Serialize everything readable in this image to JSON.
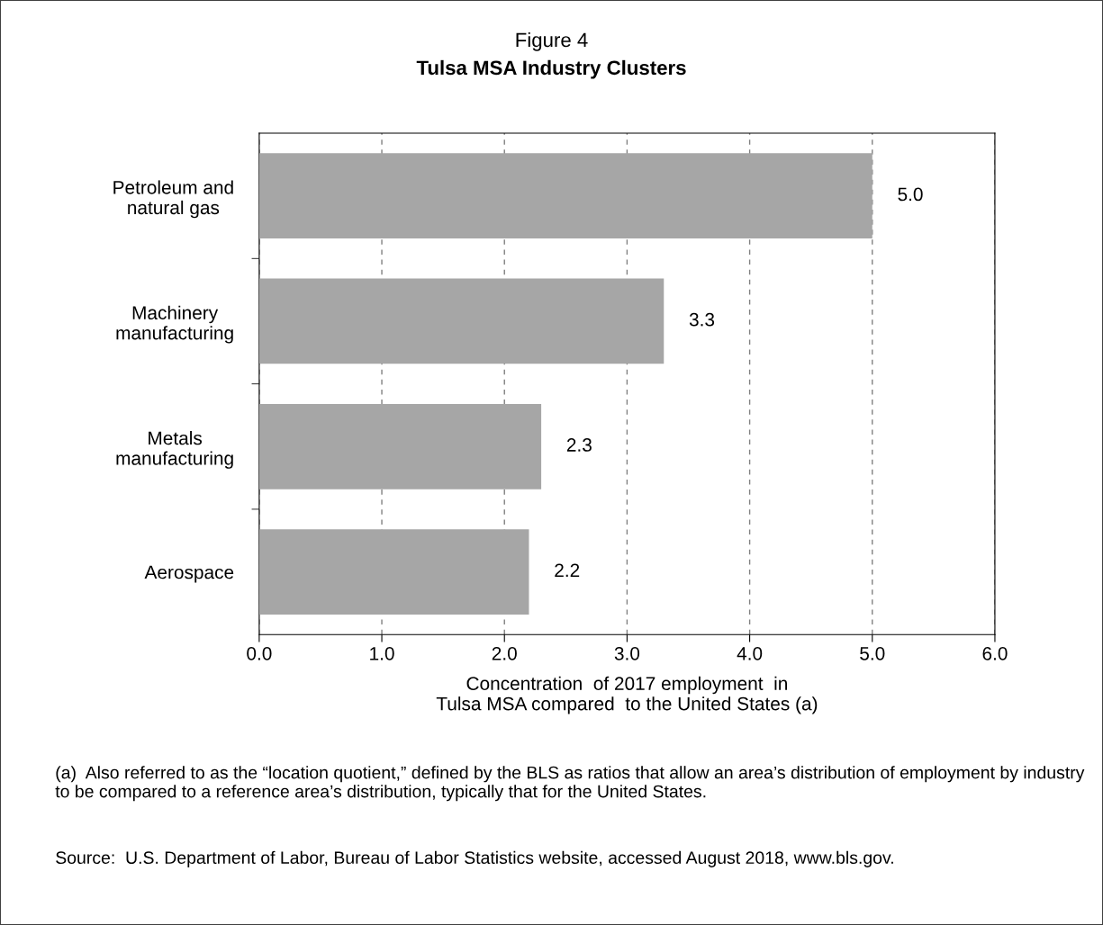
{
  "chart_data": {
    "type": "bar",
    "orientation": "horizontal",
    "title": "Figure 4",
    "subtitle": "Tulsa MSA Industry Clusters",
    "categories": [
      "Petroleum and\nnatural gas",
      "Machinery\nmanufacturing",
      "Metals\nmanufacturing",
      "Aerospace"
    ],
    "values": [
      5.0,
      3.3,
      2.3,
      2.2
    ],
    "color": "#a6a6a6",
    "xlim": [
      0,
      6
    ],
    "xticks": [
      {
        "value": 0,
        "label": "0.0"
      },
      {
        "value": 1,
        "label": "1.0"
      },
      {
        "value": 2,
        "label": "2.0"
      },
      {
        "value": 3,
        "label": "3.0"
      },
      {
        "value": 4,
        "label": "4.0"
      },
      {
        "value": 5,
        "label": "5.0"
      },
      {
        "value": 6,
        "label": "6.0"
      }
    ],
    "xlabel": "Concentration  of 2017 employment  in\nTulsa MSA compared  to the United States (a)",
    "value_labels": [
      "5.0",
      "3.3",
      "2.3",
      "2.2"
    ],
    "grid": "x",
    "legend": false,
    "annotations": [
      "(a)  Also referred to as the “location quotient,” defined by the BLS as ratios that allow an area’s distribution of employment by industry to be compared to a reference area’s distribution, typically that for the United States.",
      "Source:  U.S. Department of Labor, Bureau of Labor Statistics website, accessed August 2018, www.bls.gov."
    ]
  }
}
